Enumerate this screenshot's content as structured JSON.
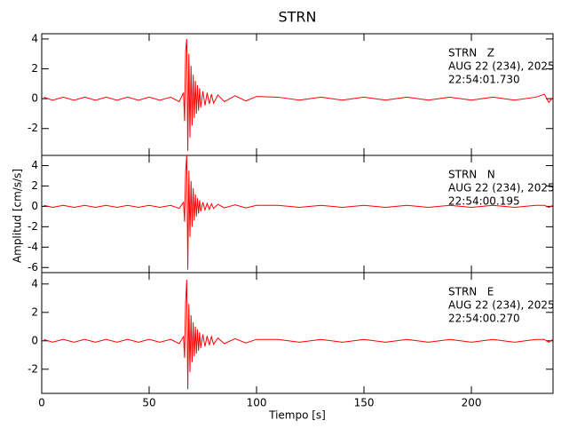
{
  "chart_data": [
    {
      "type": "line",
      "title": "STRN",
      "color": "#ff0000",
      "annotations": [
        "STRN   Z",
        "AUG 22 (234), 2025",
        "22:54:01.730"
      ],
      "x": [
        1,
        5,
        10,
        15,
        20,
        25,
        30,
        35,
        40,
        45,
        50,
        55,
        60,
        64,
        66,
        66.5,
        67,
        67.5,
        68,
        68.5,
        69,
        69.5,
        70,
        70.5,
        71,
        71.5,
        72,
        72.5,
        73,
        73.5,
        74,
        75,
        76,
        77,
        78,
        79,
        80,
        82,
        85,
        90,
        95,
        100,
        110,
        120,
        130,
        140,
        150,
        160,
        170,
        180,
        190,
        200,
        210,
        220,
        230,
        234,
        236,
        238
      ],
      "values": [
        0.1,
        -0.1,
        0.1,
        -0.1,
        0.1,
        -0.1,
        0.1,
        -0.1,
        0.1,
        -0.1,
        0.1,
        -0.1,
        0.1,
        -0.2,
        0.4,
        -1.5,
        3.2,
        4.0,
        -3.5,
        3.0,
        -2.6,
        2.2,
        -1.8,
        1.6,
        -1.3,
        1.2,
        -1.0,
        0.9,
        -0.8,
        0.7,
        -0.6,
        0.5,
        -0.45,
        0.4,
        -0.35,
        0.3,
        -0.3,
        0.25,
        -0.2,
        0.2,
        -0.15,
        0.15,
        0.1,
        -0.1,
        0.1,
        -0.1,
        0.1,
        -0.1,
        0.1,
        -0.1,
        0.1,
        -0.1,
        0.1,
        -0.1,
        0.1,
        0.3,
        -0.25,
        0.1
      ],
      "xlim": [
        0,
        238
      ],
      "xticks": [
        0,
        50,
        100,
        150,
        200
      ],
      "ylim": [
        -3.8,
        4.35
      ],
      "yticks": [
        -2,
        0,
        2,
        4
      ]
    },
    {
      "type": "line",
      "ylabel": "Amplitud [cm/s/s]",
      "color": "#ff0000",
      "annotations": [
        "STRN   N",
        "AUG 22 (234), 2025",
        "22:54:00.195"
      ],
      "x": [
        1,
        5,
        10,
        15,
        20,
        25,
        30,
        35,
        40,
        45,
        50,
        55,
        60,
        64,
        66,
        66.5,
        67,
        67.5,
        68,
        68.5,
        69,
        69.5,
        70,
        70.5,
        71,
        71.5,
        72,
        72.5,
        73,
        73.5,
        74,
        75,
        76,
        77,
        78,
        79,
        80,
        82,
        85,
        90,
        95,
        100,
        110,
        120,
        130,
        140,
        150,
        160,
        170,
        180,
        190,
        200,
        210,
        220,
        230,
        234,
        236,
        238
      ],
      "values": [
        0.1,
        -0.1,
        0.1,
        -0.1,
        0.1,
        -0.1,
        0.1,
        -0.1,
        0.1,
        -0.1,
        0.1,
        -0.1,
        0.1,
        -0.2,
        0.4,
        -1.5,
        3.5,
        5.0,
        -6.2,
        3.5,
        -3.0,
        2.5,
        -2.0,
        1.8,
        -1.4,
        1.2,
        -1.0,
        0.8,
        -0.7,
        0.6,
        -0.5,
        0.4,
        -0.35,
        0.3,
        -0.3,
        0.25,
        -0.2,
        0.2,
        -0.15,
        0.15,
        -0.15,
        0.1,
        0.1,
        -0.1,
        0.1,
        -0.1,
        0.1,
        -0.1,
        0.1,
        -0.1,
        0.1,
        -0.1,
        0.1,
        -0.1,
        0.1,
        0.1,
        -0.1,
        0.1
      ],
      "xlim": [
        0,
        238
      ],
      "xticks": [
        0,
        50,
        100,
        150,
        200
      ],
      "ylim": [
        -6.5,
        5.0
      ],
      "yticks": [
        -6,
        -4,
        -2,
        0,
        2,
        4
      ]
    },
    {
      "type": "line",
      "xlabel": "Tiempo [s]",
      "color": "#ff0000",
      "annotations": [
        "STRN   E",
        "AUG 22 (234), 2025",
        "22:54:00.270"
      ],
      "x": [
        1,
        5,
        10,
        15,
        20,
        25,
        30,
        35,
        40,
        45,
        50,
        55,
        60,
        64,
        66,
        66.5,
        67,
        67.5,
        68,
        68.5,
        69,
        69.5,
        70,
        70.5,
        71,
        71.5,
        72,
        72.5,
        73,
        73.5,
        74,
        75,
        76,
        77,
        78,
        79,
        80,
        82,
        85,
        90,
        95,
        100,
        110,
        120,
        130,
        140,
        150,
        160,
        170,
        180,
        190,
        200,
        210,
        220,
        230,
        234,
        236,
        238
      ],
      "values": [
        0.1,
        -0.1,
        0.1,
        -0.1,
        0.1,
        -0.1,
        0.1,
        -0.1,
        0.1,
        -0.1,
        0.1,
        -0.1,
        0.1,
        -0.2,
        0.3,
        -1.2,
        2.8,
        4.3,
        -3.4,
        2.6,
        -2.2,
        1.8,
        -1.5,
        1.3,
        -1.1,
        1.0,
        -0.9,
        0.8,
        -0.7,
        0.6,
        -0.5,
        0.45,
        -0.4,
        0.35,
        -0.3,
        0.3,
        -0.25,
        0.2,
        -0.2,
        0.15,
        -0.15,
        0.1,
        0.1,
        -0.1,
        0.1,
        -0.1,
        0.1,
        -0.1,
        0.1,
        -0.1,
        0.1,
        -0.1,
        0.1,
        -0.1,
        0.1,
        0.1,
        -0.1,
        0.1
      ],
      "xlim": [
        0,
        238
      ],
      "xticks": [
        0,
        50,
        100,
        150,
        200
      ],
      "ylim": [
        -3.7,
        4.8
      ],
      "yticks": [
        -2,
        0,
        2,
        4
      ]
    }
  ]
}
